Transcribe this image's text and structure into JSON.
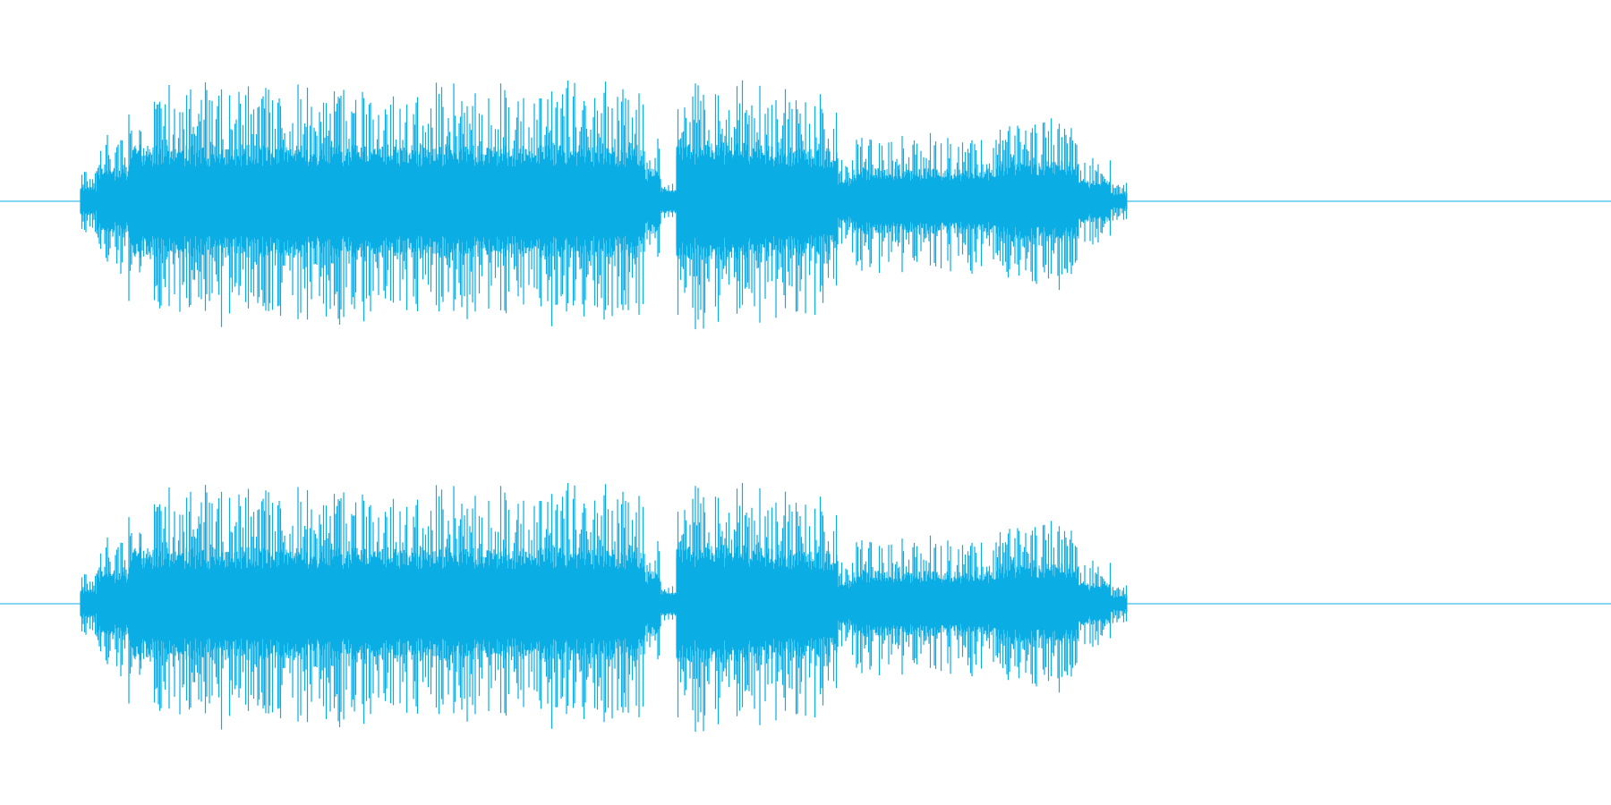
{
  "waveform": {
    "color": "#0aaee4",
    "channels": [
      {
        "id": "left",
        "segments": [
          {
            "from": 0.0,
            "to": 0.05,
            "amp": 0.0
          },
          {
            "from": 0.05,
            "to": 0.06,
            "amp": 0.25
          },
          {
            "from": 0.06,
            "to": 0.08,
            "amp": 0.55
          },
          {
            "from": 0.08,
            "to": 0.4,
            "amp": 0.95
          },
          {
            "from": 0.4,
            "to": 0.41,
            "amp": 0.55
          },
          {
            "from": 0.41,
            "to": 0.42,
            "amp": 0.2
          },
          {
            "from": 0.42,
            "to": 0.48,
            "amp": 1.0
          },
          {
            "from": 0.48,
            "to": 0.52,
            "amp": 0.9
          },
          {
            "from": 0.52,
            "to": 0.53,
            "amp": 0.4
          },
          {
            "from": 0.53,
            "to": 0.62,
            "amp": 0.55
          },
          {
            "from": 0.62,
            "to": 0.67,
            "amp": 0.7
          },
          {
            "from": 0.67,
            "to": 0.69,
            "amp": 0.35
          },
          {
            "from": 0.69,
            "to": 0.7,
            "amp": 0.15
          },
          {
            "from": 0.7,
            "to": 1.0,
            "amp": 0.0
          }
        ]
      },
      {
        "id": "right",
        "segments": [
          {
            "from": 0.0,
            "to": 0.05,
            "amp": 0.0
          },
          {
            "from": 0.05,
            "to": 0.06,
            "amp": 0.25
          },
          {
            "from": 0.06,
            "to": 0.08,
            "amp": 0.55
          },
          {
            "from": 0.08,
            "to": 0.4,
            "amp": 0.95
          },
          {
            "from": 0.4,
            "to": 0.41,
            "amp": 0.55
          },
          {
            "from": 0.41,
            "to": 0.42,
            "amp": 0.2
          },
          {
            "from": 0.42,
            "to": 0.48,
            "amp": 1.0
          },
          {
            "from": 0.48,
            "to": 0.52,
            "amp": 0.9
          },
          {
            "from": 0.52,
            "to": 0.53,
            "amp": 0.4
          },
          {
            "from": 0.53,
            "to": 0.62,
            "amp": 0.55
          },
          {
            "from": 0.62,
            "to": 0.67,
            "amp": 0.7
          },
          {
            "from": 0.67,
            "to": 0.69,
            "amp": 0.35
          },
          {
            "from": 0.69,
            "to": 0.7,
            "amp": 0.15
          },
          {
            "from": 0.7,
            "to": 1.0,
            "amp": 0.0
          }
        ]
      }
    ]
  }
}
